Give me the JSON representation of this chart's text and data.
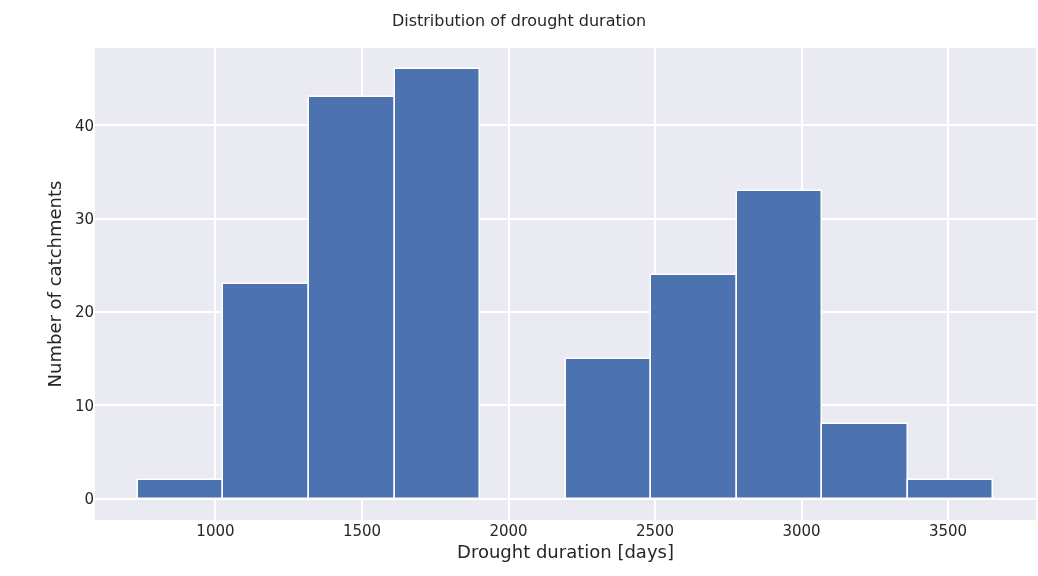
{
  "chart_data": {
    "type": "histogram",
    "title": "Distribution of drought duration",
    "xlabel": "Drought duration [days]",
    "ylabel": "Number of catchments",
    "bins": [
      735,
      1027,
      1319,
      1611,
      1903,
      2195,
      2486,
      2778,
      3070,
      3362,
      3654
    ],
    "values": [
      2,
      23,
      43,
      46,
      0,
      15,
      24,
      33,
      8,
      2
    ],
    "color": "#4c72b0",
    "xlim": [
      589,
      3800
    ],
    "ylim": [
      -2.3,
      48.3
    ],
    "xticks": [
      1000,
      1500,
      2000,
      2500,
      3000,
      3500
    ],
    "yticks": [
      0,
      10,
      20,
      30,
      40
    ],
    "grid": true
  }
}
